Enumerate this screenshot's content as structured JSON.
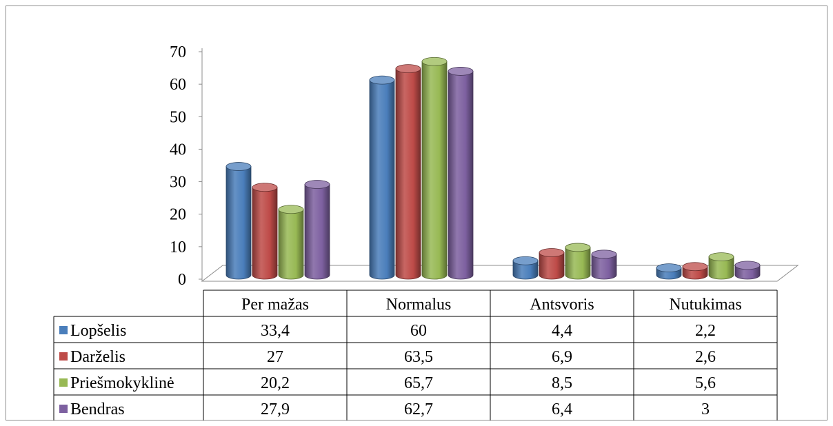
{
  "chart_data": {
    "type": "bar",
    "title": "",
    "xlabel": "",
    "ylabel": "",
    "ylim": [
      0,
      70
    ],
    "yticks": [
      0,
      10,
      20,
      30,
      40,
      50,
      60,
      70
    ],
    "categories": [
      "Per mažas",
      "Normalus",
      "Antsvoris",
      "Nutukimas"
    ],
    "series": [
      {
        "name": "Lopšelis",
        "color": "#4a7ebb",
        "values": [
          33.4,
          60,
          4.4,
          2.2
        ],
        "labels": [
          "33,4",
          "60",
          "4,4",
          "2,2"
        ]
      },
      {
        "name": "Darželis",
        "color": "#be4b48",
        "values": [
          27,
          63.5,
          6.9,
          2.6
        ],
        "labels": [
          "27",
          "63,5",
          "6,9",
          "2,6"
        ]
      },
      {
        "name": "Priešmokyklinė",
        "color": "#98b954",
        "values": [
          20.2,
          65.7,
          8.5,
          5.6
        ],
        "labels": [
          "20,2",
          "65,7",
          "8,5",
          "5,6"
        ]
      },
      {
        "name": "Bendras",
        "color": "#7d60a0",
        "values": [
          27.9,
          62.7,
          6.4,
          3
        ],
        "labels": [
          "27,9",
          "62,7",
          "6,4",
          "3"
        ]
      }
    ],
    "grid": false,
    "legend": "data-table",
    "style": "3d-cylinder"
  }
}
